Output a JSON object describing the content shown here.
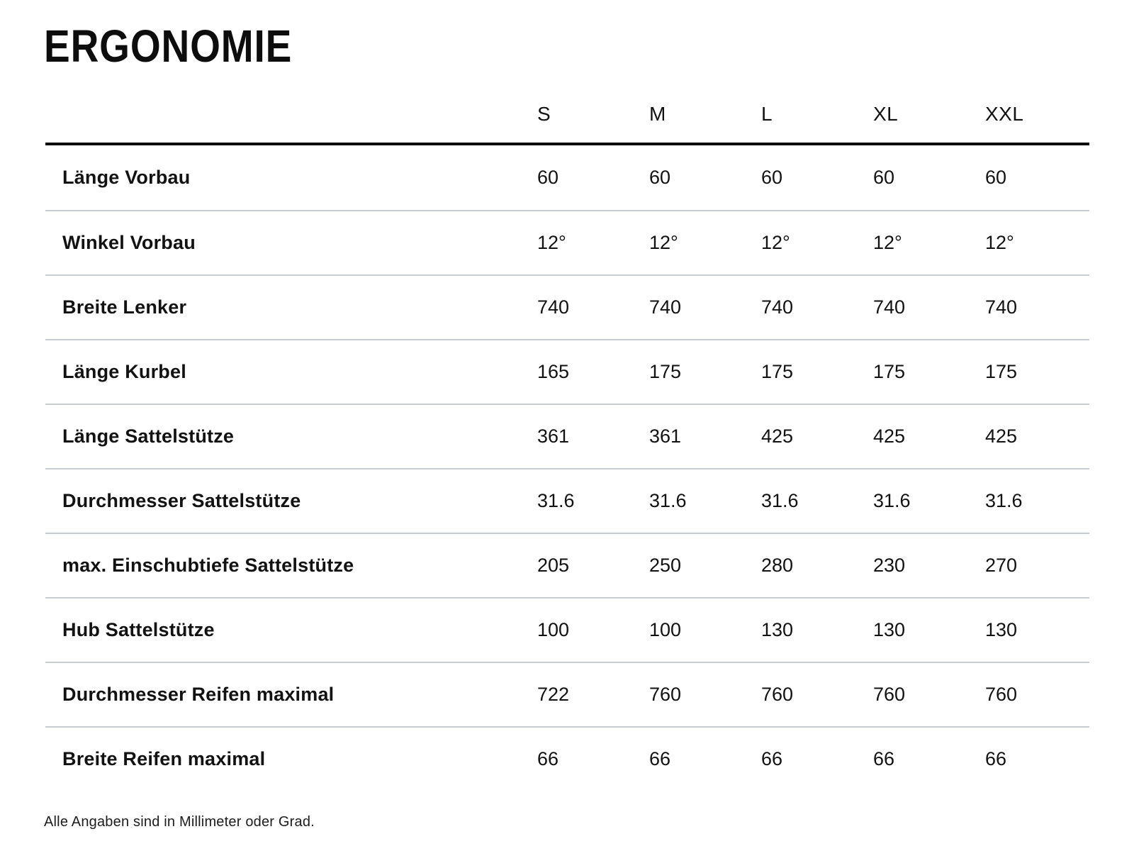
{
  "page": {
    "title": "ERGONOMIE",
    "footnote": "Alle Angaben sind in Millimeter oder Grad."
  },
  "colors": {
    "heading_text": "#0d0d0d",
    "header_rule": "#0a0a0a",
    "row_divider": "#c7ccd0",
    "background": "#ffffff"
  },
  "chart_data": {
    "type": "table",
    "title": "ERGONOMIE",
    "columns": [
      "S",
      "M",
      "L",
      "XL",
      "XXL"
    ],
    "rows": [
      {
        "label": "Länge Vorbau",
        "values": [
          "60",
          "60",
          "60",
          "60",
          "60"
        ]
      },
      {
        "label": "Winkel Vorbau",
        "values": [
          "12°",
          "12°",
          "12°",
          "12°",
          "12°"
        ]
      },
      {
        "label": "Breite Lenker",
        "values": [
          "740",
          "740",
          "740",
          "740",
          "740"
        ]
      },
      {
        "label": "Länge Kurbel",
        "values": [
          "165",
          "175",
          "175",
          "175",
          "175"
        ]
      },
      {
        "label": "Länge Sattelstütze",
        "values": [
          "361",
          "361",
          "425",
          "425",
          "425"
        ]
      },
      {
        "label": "Durchmesser Sattelstütze",
        "values": [
          "31.6",
          "31.6",
          "31.6",
          "31.6",
          "31.6"
        ]
      },
      {
        "label": "max. Einschubtiefe Sattelstütze",
        "values": [
          "205",
          "250",
          "280",
          "230",
          "270"
        ]
      },
      {
        "label": "Hub Sattelstütze",
        "values": [
          "100",
          "100",
          "130",
          "130",
          "130"
        ]
      },
      {
        "label": "Durchmesser Reifen maximal",
        "values": [
          "722",
          "760",
          "760",
          "760",
          "760"
        ]
      },
      {
        "label": "Breite Reifen maximal",
        "values": [
          "66",
          "66",
          "66",
          "66",
          "66"
        ]
      }
    ],
    "footnote": "Alle Angaben sind in Millimeter oder Grad."
  }
}
